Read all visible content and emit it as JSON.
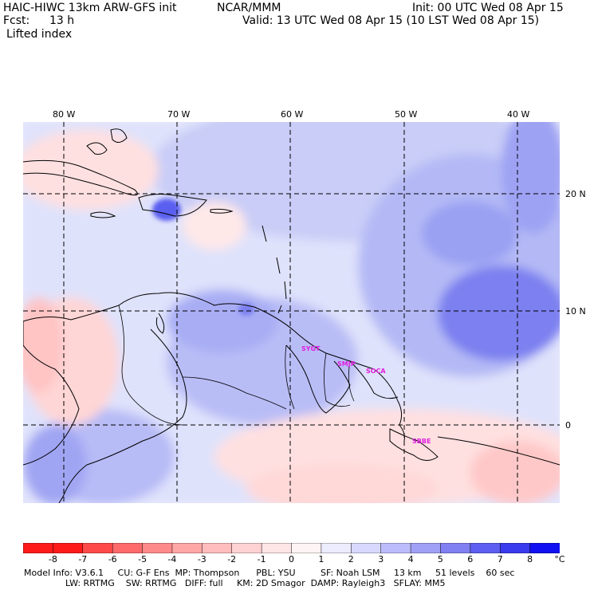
{
  "header": {
    "model": "HAIC-HIWC 13km ARW-GFS init",
    "center": "NCAR/MMM",
    "init": "Init: 00 UTC Wed 08 Apr 15",
    "fcst_label": "Fcst:",
    "fcst_value": "13 h",
    "valid": "Valid: 13 UTC Wed 08 Apr 15 (10 LST Wed 08 Apr 15)",
    "field": "Lifted index"
  },
  "map": {
    "lon_labels": [
      "80 W",
      "70 W",
      "60 W",
      "50 W",
      "40 W"
    ],
    "lat_labels": [
      "20 N",
      "10 N",
      "0"
    ],
    "stations": [
      "SYGT",
      "SMJP",
      "SOCA",
      "SBBE"
    ]
  },
  "legend": {
    "ticks": [
      "-8",
      "-7",
      "-6",
      "-5",
      "-4",
      "-3",
      "-2",
      "-1",
      "0",
      "1",
      "2",
      "3",
      "4",
      "5",
      "6",
      "7",
      "8"
    ],
    "unit": "°C",
    "colors": [
      "#ff1a1a",
      "#ff4a4a",
      "#ff6a6a",
      "#ff8a8a",
      "#ffa6a6",
      "#ffbdbd",
      "#ffd2d2",
      "#ffe6e6",
      "#fff4f4",
      "#ececff",
      "#d8d8ff",
      "#bcbcfb",
      "#a0a0f6",
      "#8080f2",
      "#5e5ef0",
      "#3a3aee",
      "#1010f0"
    ]
  },
  "footer": {
    "line1": "Model Info: V3.6.1     CU: G-F Ens  MP: Thompson      PBL: YSU         SF: Noah LSM     13 km     51 levels    60 sec",
    "line2": "LW: RRTMG    SW: RRTMG   DIFF: full     KM: 2D Smagor  DAMP: Rayleigh3   SFLAY: MM5"
  }
}
